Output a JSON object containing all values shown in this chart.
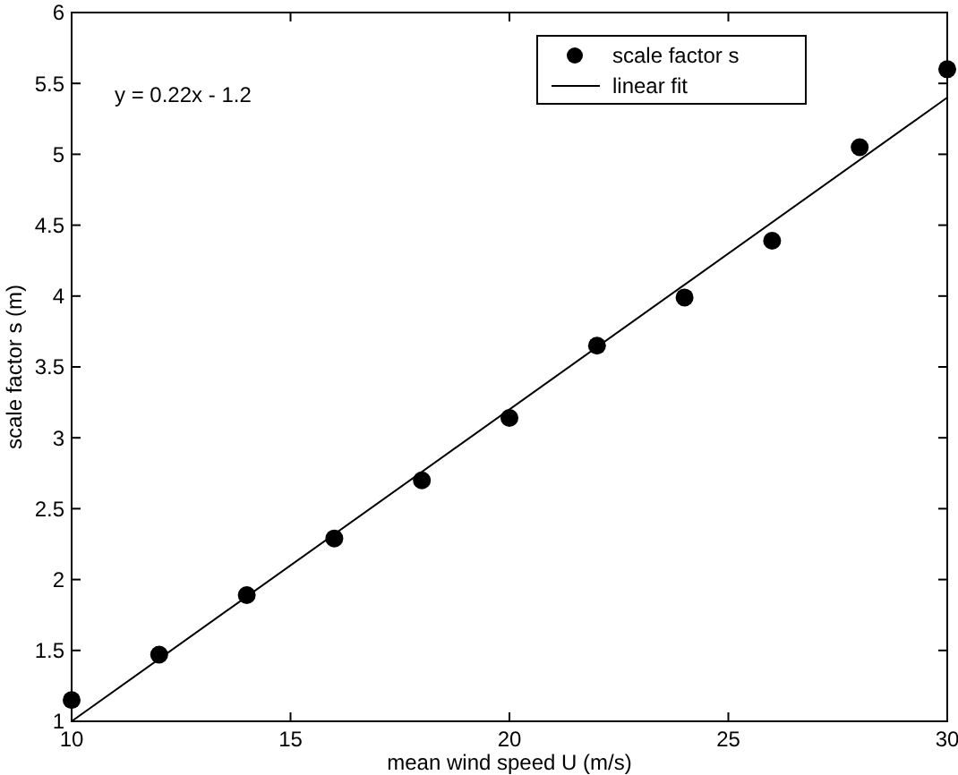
{
  "chart_data": {
    "type": "scatter",
    "xlabel": "mean wind speed U (m/s)",
    "ylabel": "scale factor s (m)",
    "xlim": [
      10,
      30
    ],
    "ylim": [
      1,
      6
    ],
    "xticks": [
      10,
      15,
      20,
      25,
      30
    ],
    "yticks": [
      1,
      1.5,
      2,
      2.5,
      3,
      3.5,
      4,
      4.5,
      5,
      5.5,
      6
    ],
    "grid": false,
    "legend": "top right",
    "annotations": [
      "y = 0.22x - 1.2"
    ],
    "series": [
      {
        "name": "scale factor s",
        "marker": "circle",
        "color": "#000000",
        "x": [
          10,
          12,
          14,
          16,
          18,
          20,
          22,
          24,
          26,
          28,
          30
        ],
        "values": [
          1.15,
          1.47,
          1.89,
          2.29,
          2.7,
          3.14,
          3.65,
          3.99,
          4.39,
          5.05,
          5.6
        ]
      },
      {
        "name": "linear fit",
        "type": "line",
        "color": "#000000",
        "line_style": "solid",
        "marker": "none",
        "x": [
          10,
          30
        ],
        "values": [
          1,
          5.4
        ]
      }
    ]
  }
}
